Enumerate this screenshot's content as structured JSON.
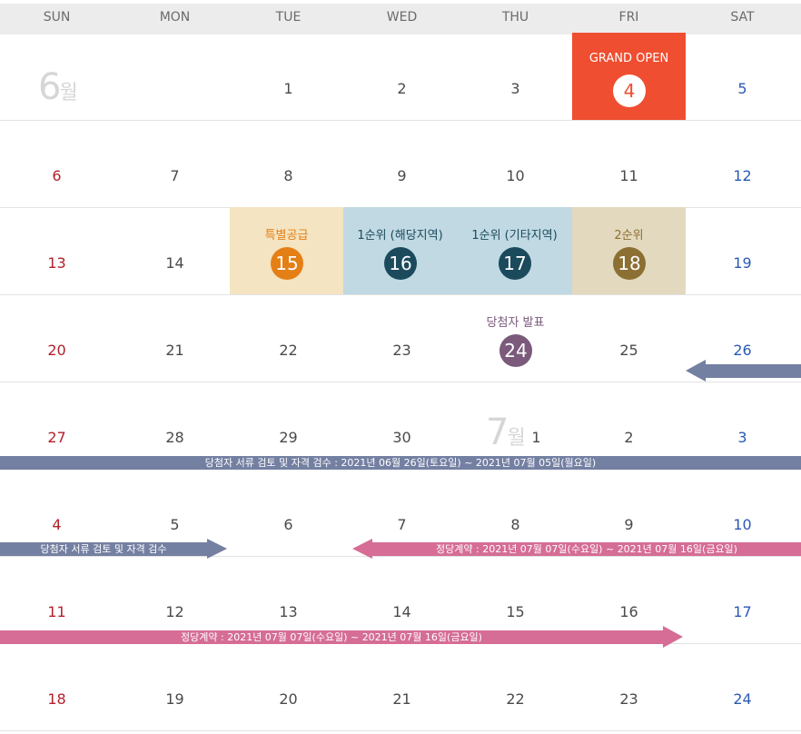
{
  "weekdays": [
    "SUN",
    "MON",
    "TUE",
    "WED",
    "THU",
    "FRI",
    "SAT"
  ],
  "months": {
    "june": "6",
    "june_suffix": "월",
    "july": "7",
    "july_suffix": "월"
  },
  "weeks": [
    [
      "",
      "",
      "1",
      "2",
      "3",
      "4",
      "5"
    ],
    [
      "6",
      "7",
      "8",
      "9",
      "10",
      "11",
      "12"
    ],
    [
      "13",
      "14",
      "15",
      "16",
      "17",
      "18",
      "19"
    ],
    [
      "20",
      "21",
      "22",
      "23",
      "24",
      "25",
      "26"
    ],
    [
      "27",
      "28",
      "29",
      "30",
      "1",
      "2",
      "3"
    ],
    [
      "4",
      "5",
      "6",
      "7",
      "8",
      "9",
      "10"
    ],
    [
      "11",
      "12",
      "13",
      "14",
      "15",
      "16",
      "17"
    ],
    [
      "18",
      "19",
      "20",
      "21",
      "22",
      "23",
      "24"
    ]
  ],
  "events": {
    "grand_open": {
      "label": "GRAND OPEN",
      "day": "4",
      "color": "#ef4e31"
    },
    "special": {
      "label": "특별공급",
      "day": "15",
      "color": "#f4e4c1",
      "accent": "#e47f16"
    },
    "first_local": {
      "label": "1순위 (해당지역)",
      "day": "16",
      "color": "#c0d9e3",
      "accent": "#1b4a5c"
    },
    "first_other": {
      "label": "1순위 (기타지역)",
      "day": "17",
      "color": "#c0d9e3",
      "accent": "#1b4a5c"
    },
    "second": {
      "label": "2순위",
      "day": "18",
      "color": "#e3d9be",
      "accent": "#8c6f33"
    },
    "winner": {
      "label": "당첨자 발표",
      "day": "24",
      "accent": "#7b5a7c"
    }
  },
  "bars": {
    "review_full": "당첨자 서류 검토 및 자격 검수 : 2021년 06월 26일(토요일) ~ 2021년 07월 05일(월요일)",
    "review_short": "당첨자 서류 검토 및 자격 검수",
    "contract1": "정당계약 : 2021년 07월 07일(수요일) ~ 2021년 07월 16일(금요일)",
    "contract2": "정당계약 : 2021년 07월 07일(수요일) ~ 2021년 07월 16일(금요일)",
    "review_color": "#7480a2",
    "contract_color": "#d56d96"
  }
}
